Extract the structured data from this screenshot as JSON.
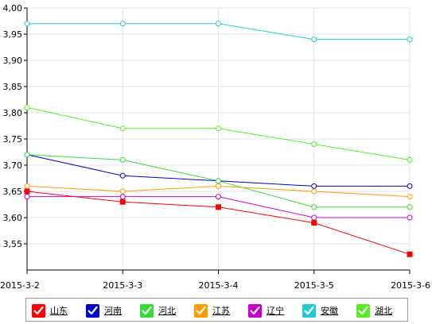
{
  "chart_data": {
    "type": "line",
    "x": [
      "2015-3-2",
      "2015-3-3",
      "2015-3-4",
      "2015-3-5",
      "2015-3-6"
    ],
    "ylim": [
      3.5,
      4.0
    ],
    "yticks": [
      "3,55",
      "3,60",
      "3,65",
      "3,70",
      "3,75",
      "3,80",
      "3,85",
      "3,90",
      "3,95",
      "4,00"
    ],
    "grid": true,
    "legend_position": "bottom",
    "series": [
      {
        "name": "山东",
        "color": "#ff0000",
        "marker": "square",
        "values": [
          3.65,
          3.63,
          3.62,
          3.59,
          3.53
        ]
      },
      {
        "name": "河南",
        "color": "#0000cc",
        "marker": "circle",
        "values": [
          3.72,
          3.68,
          3.67,
          3.66,
          3.66
        ]
      },
      {
        "name": "河北",
        "color": "#33dd33",
        "marker": "circle",
        "values": [
          3.72,
          3.71,
          3.67,
          3.62,
          3.62
        ]
      },
      {
        "name": "江苏",
        "color": "#ff9900",
        "marker": "circle",
        "values": [
          3.66,
          3.65,
          3.66,
          3.65,
          3.64
        ]
      },
      {
        "name": "辽宁",
        "color": "#cc00cc",
        "marker": "circle",
        "values": [
          3.64,
          3.64,
          3.64,
          3.6,
          3.6
        ]
      },
      {
        "name": "安徽",
        "color": "#22cccc",
        "marker": "circle",
        "values": [
          3.97,
          3.97,
          3.97,
          3.94,
          3.94
        ]
      },
      {
        "name": "湖北",
        "color": "#55ee22",
        "marker": "circle",
        "values": [
          3.81,
          3.77,
          3.77,
          3.74,
          3.71
        ]
      }
    ]
  }
}
